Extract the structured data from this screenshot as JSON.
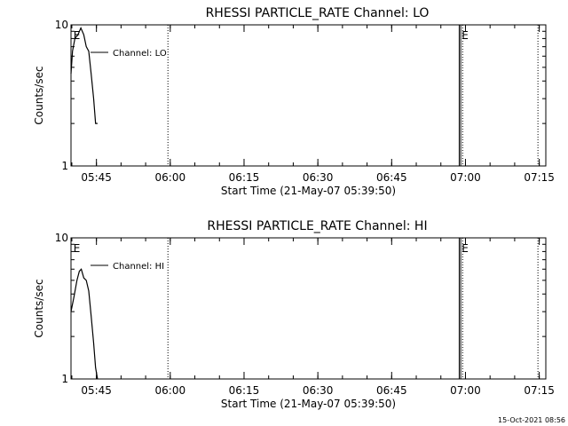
{
  "footer_timestamp": "15-Oct-2021 08:56",
  "chart_data": [
    {
      "type": "line",
      "title": "RHESSI PARTICLE_RATE Channel: LO",
      "xlabel": "Start Time (21-May-07 05:39:50)",
      "ylabel": "Counts/sec",
      "yscale": "log",
      "ylim": [
        1,
        10
      ],
      "xlim_minutes": [
        0,
        96.5
      ],
      "x_ticks": [
        {
          "label": "05:45",
          "minute": 5.17
        },
        {
          "label": "06:00",
          "minute": 20.17
        },
        {
          "label": "06:15",
          "minute": 35.17
        },
        {
          "label": "06:30",
          "minute": 50.17
        },
        {
          "label": "06:45",
          "minute": 65.17
        },
        {
          "label": "07:00",
          "minute": 80.17
        },
        {
          "label": "07:15",
          "minute": 95.17
        }
      ],
      "y_ticks": [
        {
          "label": "1",
          "value": 1
        },
        {
          "label": "10",
          "value": 10
        }
      ],
      "series": [
        {
          "name": "Channel: LO",
          "x": [
            0,
            0.3,
            0.8,
            1.4,
            2.0,
            2.6,
            3.1,
            3.6,
            4.1,
            4.6,
            5.0,
            5.4
          ],
          "y": [
            4.5,
            6.5,
            8.0,
            8.5,
            9.5,
            8.5,
            7.0,
            6.5,
            4.5,
            3.0,
            2.0,
            2.0
          ]
        }
      ],
      "vlines_dotted_minutes": [
        19.7,
        79.6,
        94.9
      ],
      "vlines_solid_minutes": [
        78.9,
        79.2
      ],
      "markers": [
        {
          "label": "E",
          "minute": 0.5
        },
        {
          "label": "E",
          "minute": 79.4
        }
      ]
    },
    {
      "type": "line",
      "title": "RHESSI PARTICLE_RATE Channel: HI",
      "xlabel": "Start Time (21-May-07 05:39:50)",
      "ylabel": "Counts/sec",
      "yscale": "log",
      "ylim": [
        1,
        10
      ],
      "xlim_minutes": [
        0,
        96.5
      ],
      "x_ticks": [
        {
          "label": "05:45",
          "minute": 5.17
        },
        {
          "label": "06:00",
          "minute": 20.17
        },
        {
          "label": "06:15",
          "minute": 35.17
        },
        {
          "label": "06:30",
          "minute": 50.17
        },
        {
          "label": "06:45",
          "minute": 65.17
        },
        {
          "label": "07:00",
          "minute": 80.17
        },
        {
          "label": "07:15",
          "minute": 95.17
        }
      ],
      "y_ticks": [
        {
          "label": "1",
          "value": 1
        },
        {
          "label": "10",
          "value": 10
        }
      ],
      "series": [
        {
          "name": "Channel: HI",
          "x": [
            0,
            0.6,
            1.2,
            1.7,
            2.1,
            2.6,
            3.1,
            3.6,
            4.1,
            4.6,
            5.0,
            5.4
          ],
          "y": [
            3.0,
            3.8,
            5.0,
            5.8,
            6.0,
            5.2,
            5.0,
            4.2,
            2.8,
            1.8,
            1.2,
            1.0
          ]
        }
      ],
      "vlines_dotted_minutes": [
        19.7,
        79.6,
        94.9
      ],
      "vlines_solid_minutes": [
        78.9,
        79.2
      ],
      "markers": [
        {
          "label": "E",
          "minute": 0.5
        },
        {
          "label": "E",
          "minute": 79.4
        }
      ]
    }
  ]
}
